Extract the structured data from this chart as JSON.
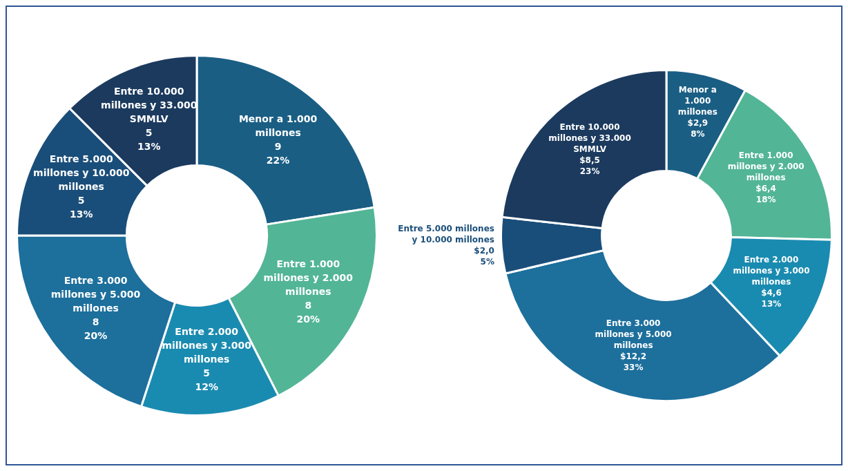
{
  "chart_data": [
    {
      "type": "donut",
      "categories": [
        "Menor a 1.000 millones",
        "Entre 1.000 millones y 2.000 millones",
        "Entre 2.000 millones y 3.000 millones",
        "Entre 3.000 millones y 5.000 millones",
        "Entre 5.000 millones y 10.000 millones",
        "Entre 10.000 millones y 33.000 SMMLV"
      ],
      "values": [
        9,
        8,
        5,
        8,
        5,
        5
      ],
      "colors": [
        "#1a5e84",
        "#52b596",
        "#1a8bb0",
        "#1d6f9c",
        "#1a4e7a",
        "#1b3a5e"
      ],
      "value_labels": [
        "9\n22%",
        "8\n20%",
        "5\n12%",
        "8\n20%",
        "5\n13%",
        "5\n13%"
      ]
    },
    {
      "type": "donut",
      "categories": [
        "Menor a 1.000 millones",
        "Entre 1.000 millones y 2.000 millones",
        "Entre 2.000 millones y 3.000 millones",
        "Entre 3.000 millones y 5.000 millones",
        "Entre 5.000 millones y 10.000 millones",
        "Entre 10.000 millones y 33.000 SMMLV"
      ],
      "values": [
        2.9,
        6.4,
        4.6,
        12.2,
        2.0,
        8.5
      ],
      "colors": [
        "#1a5e84",
        "#52b596",
        "#1a8bb0",
        "#1d6f9c",
        "#1a4e7a",
        "#1b3a5e"
      ],
      "value_labels": [
        "$2,9\n8%",
        "$6,4\n18%",
        "$4,6\n13%",
        "$12,2\n33%",
        "$2,0\n5%",
        "$8,5\n23%"
      ]
    }
  ]
}
